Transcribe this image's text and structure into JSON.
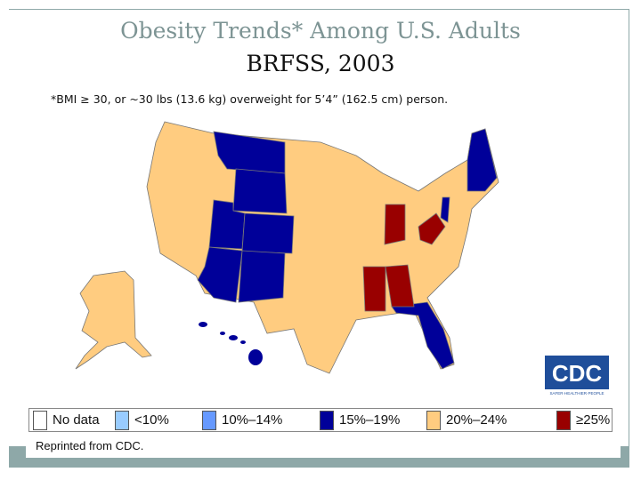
{
  "title": "Obesity Trends* Among U.S. Adults",
  "subtitle": "BRFSS, 2003",
  "footnote": "*BMI ≥ 30, or ~30 lbs (13.6 kg) overweight for 5’4” (162.5 cm) person.",
  "legend": [
    {
      "label": "No data",
      "color": "#ffffff"
    },
    {
      "label": "<10%",
      "color": "#99ccff"
    },
    {
      "label": "10%–14%",
      "color": "#6699ff"
    },
    {
      "label": "15%–19%",
      "color": "#000099"
    },
    {
      "label": "20%–24%",
      "color": "#ffcc80"
    },
    {
      "label": "≥25%",
      "color": "#990000"
    }
  ],
  "map": {
    "15%-19%": [
      "Montana",
      "Wyoming",
      "Utah",
      "Colorado",
      "Arizona",
      "New Mexico",
      "Florida",
      "New England",
      "New Jersey",
      "Hawaii"
    ],
    "≥25%": [
      "Indiana",
      "West Virginia",
      "Mississippi",
      "Alabama"
    ],
    "20%-24%": [
      "all other states",
      "Alaska"
    ]
  },
  "credit": "Reprinted from CDC.",
  "logo": {
    "text": "CDC",
    "tagline": "SAFER·HEALTHIER·PEOPLE"
  }
}
